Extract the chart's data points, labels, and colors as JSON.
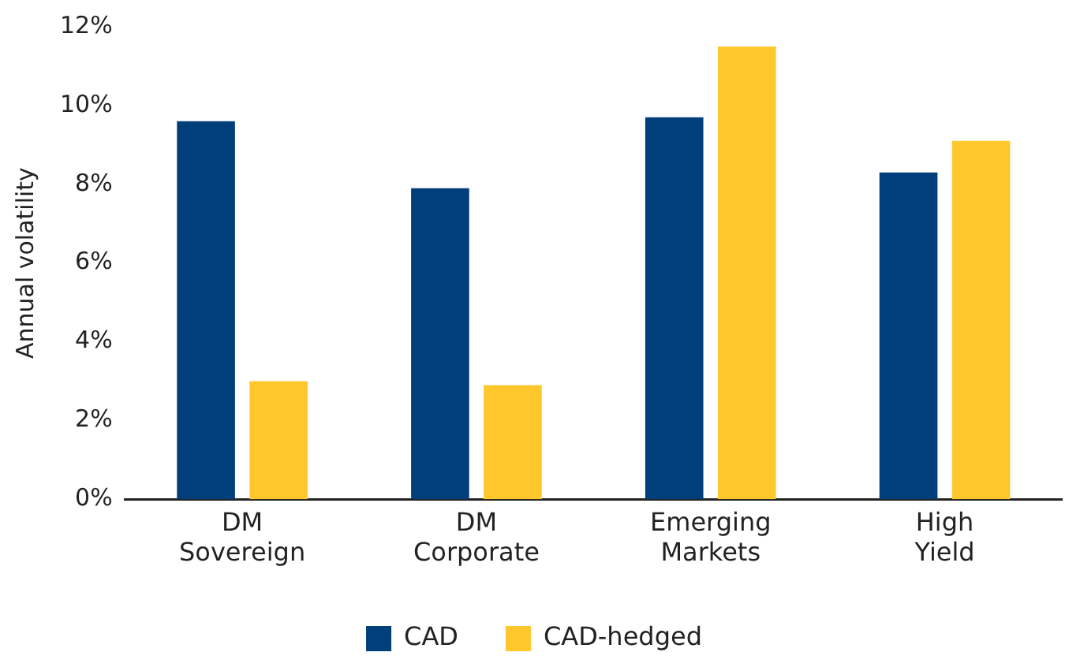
{
  "chart_data": {
    "type": "bar",
    "ylabel": "Annual volatility",
    "categories": [
      "DM Sovereign",
      "DM Corporate",
      "Emerging Markets",
      "High Yield"
    ],
    "series": [
      {
        "name": "CAD",
        "color": "#003f7a",
        "values": [
          9.6,
          7.9,
          9.7,
          8.3
        ]
      },
      {
        "name": "CAD-hedged",
        "color": "#ffc72c",
        "values": [
          3.0,
          2.9,
          11.5,
          9.1
        ]
      }
    ],
    "ylim": [
      0,
      12
    ],
    "yticks": [
      {
        "value": 0,
        "label": "0%"
      },
      {
        "value": 2,
        "label": "2%"
      },
      {
        "value": 4,
        "label": "4%"
      },
      {
        "value": 6,
        "label": "6%"
      },
      {
        "value": 8,
        "label": "8%"
      },
      {
        "value": 10,
        "label": "10%"
      },
      {
        "value": 12,
        "label": "12%"
      }
    ],
    "grid": false,
    "legend": "bottom"
  }
}
